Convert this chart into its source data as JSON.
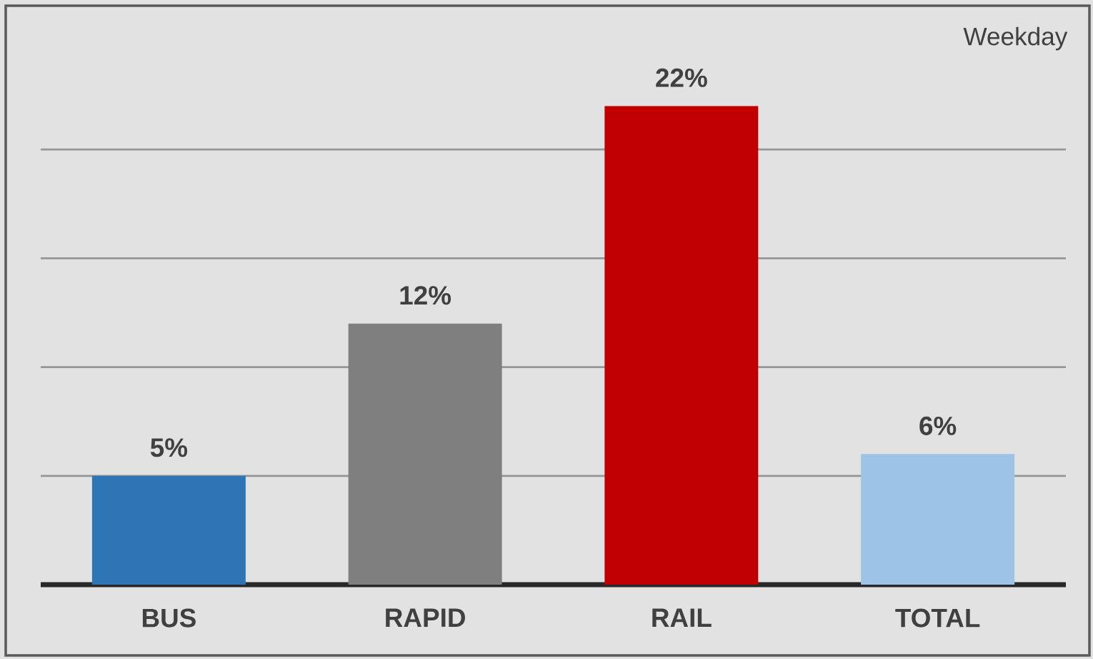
{
  "chart_data": {
    "type": "bar",
    "title": "Weekday",
    "categories": [
      "BUS",
      "RAPID",
      "RAIL",
      "TOTAL"
    ],
    "values": [
      5,
      12,
      22,
      6
    ],
    "value_labels": [
      "5%",
      "12%",
      "22%",
      "6%"
    ],
    "colors": [
      "#2e75b6",
      "#7f7f7f",
      "#c00000",
      "#9dc3e6"
    ],
    "tick_labels": "x",
    "grid": "y"
  }
}
